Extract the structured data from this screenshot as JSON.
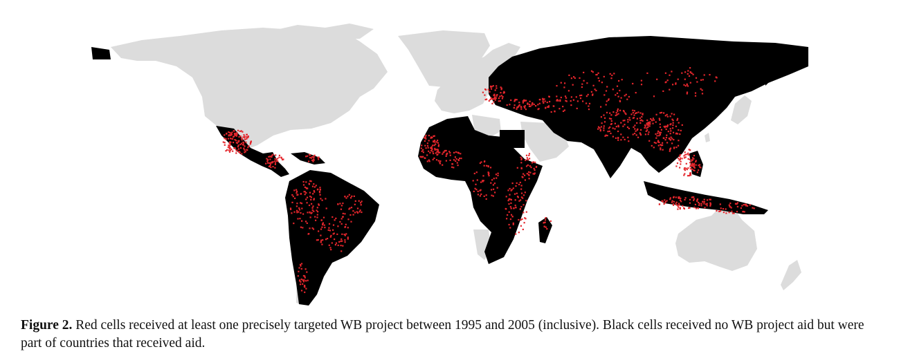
{
  "figure": {
    "label": "Figure 2.",
    "caption": "Red cells received at least one precisely targeted WB project between 1995 and 2005 (inclusive). Black cells received no WB project aid but were part of countries that received aid."
  },
  "map": {
    "colors": {
      "no_aid_country": "#dcdcdc",
      "aid_country_no_project": "#000000",
      "project_cell": "#e4262c",
      "background": "#ffffff"
    }
  }
}
